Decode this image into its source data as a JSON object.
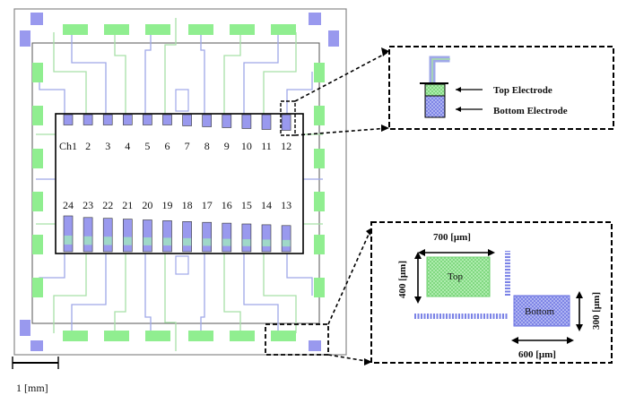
{
  "channels_top": [
    "Ch1",
    "2",
    "3",
    "4",
    "5",
    "6",
    "7",
    "8",
    "9",
    "10",
    "11",
    "12"
  ],
  "channels_bottom": [
    "24",
    "23",
    "22",
    "21",
    "20",
    "19",
    "18",
    "17",
    "16",
    "15",
    "14",
    "13"
  ],
  "electrode_level_top": [
    0.35,
    0.35,
    0.35,
    0.35,
    0.35,
    0.35,
    0.45,
    0.55,
    0.65,
    0.75,
    0.85,
    0.95
  ],
  "electrode_level_bottom": [
    1.0,
    0.9,
    0.85,
    0.8,
    0.75,
    0.7,
    0.65,
    0.6,
    0.55,
    0.5,
    0.45,
    0.4
  ],
  "inset_top": {
    "top_label": "Top Electrode",
    "bottom_label": "Bottom Electrode"
  },
  "inset_bottom": {
    "top_pad_label": "Top",
    "bottom_pad_label": "Bottom",
    "dim_top_width": "700 [μm]",
    "dim_top_height": "400 [μm]",
    "dim_bottom_height": "300 [μm]",
    "dim_bottom_width": "600 [μm]"
  },
  "scale_bar": "1 [mm]",
  "colors": {
    "pad_green": "#90ee90",
    "pad_blue": "#9999ee",
    "trace_green": "#a8e0a8",
    "trace_blue": "#9fa8e8",
    "outline": "#222222"
  }
}
